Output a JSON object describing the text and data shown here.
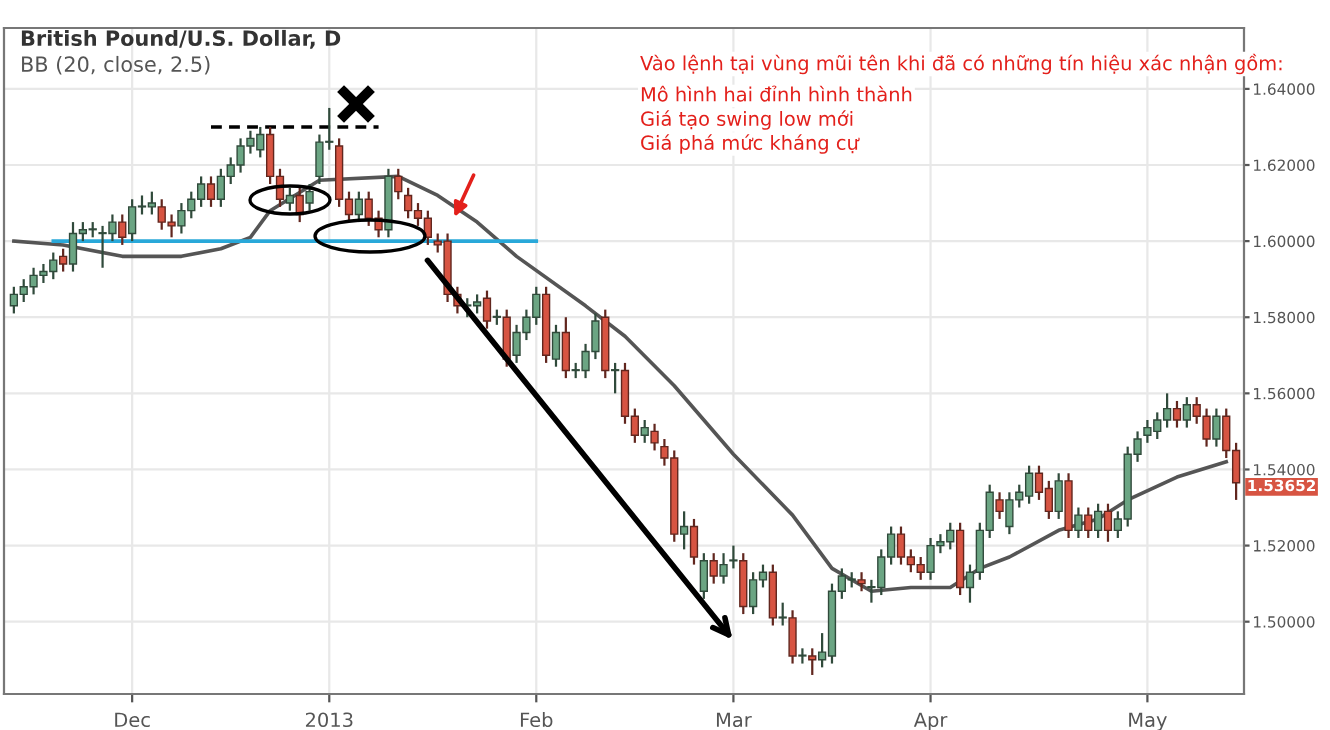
{
  "chart_data": {
    "type": "candlestick",
    "title": "British Pound/U.S. Dollar, D",
    "subtitle": "BB (20, close, 2.5)",
    "categories": [
      null,
      null,
      null,
      null,
      null,
      null,
      null,
      null,
      null,
      null,
      null,
      null,
      "Dec",
      null,
      null,
      null,
      null,
      null,
      null,
      null,
      null,
      null,
      null,
      null,
      null,
      null,
      null,
      null,
      null,
      null,
      null,
      null,
      "2013",
      null,
      null,
      null,
      null,
      null,
      null,
      null,
      null,
      null,
      null,
      null,
      null,
      null,
      null,
      null,
      null,
      null,
      null,
      null,
      null,
      "Feb",
      null,
      null,
      null,
      null,
      null,
      null,
      null,
      null,
      null,
      null,
      null,
      null,
      null,
      null,
      null,
      null,
      null,
      null,
      null,
      "Mar",
      null,
      null,
      null,
      null,
      null,
      null,
      null,
      null,
      null,
      null,
      null,
      null,
      null,
      null,
      null,
      null,
      null,
      null,
      null,
      "Apr",
      null,
      null,
      null,
      null,
      null,
      null,
      null,
      null,
      null,
      null,
      null,
      null,
      null,
      null,
      null,
      null,
      null,
      null,
      null,
      null,
      null,
      "May",
      null,
      null,
      null,
      null,
      null,
      null,
      null,
      null,
      null
    ],
    "ohlc": [
      [
        1.583,
        1.588,
        1.581,
        1.586
      ],
      [
        1.586,
        1.59,
        1.584,
        1.588
      ],
      [
        1.588,
        1.593,
        1.586,
        1.591
      ],
      [
        1.591,
        1.594,
        1.589,
        1.592
      ],
      [
        1.592,
        1.597,
        1.59,
        1.595
      ],
      [
        1.596,
        1.598,
        1.592,
        1.594
      ],
      [
        1.594,
        1.605,
        1.592,
        1.602
      ],
      [
        1.602,
        1.605,
        1.6,
        1.603
      ],
      [
        1.603,
        1.605,
        1.601,
        1.603
      ],
      [
        1.602,
        1.604,
        1.593,
        1.602
      ],
      [
        1.602,
        1.607,
        1.6,
        1.605
      ],
      [
        1.605,
        1.607,
        1.599,
        1.601
      ],
      [
        1.602,
        1.611,
        1.6,
        1.609
      ],
      [
        1.609,
        1.612,
        1.607,
        1.609
      ],
      [
        1.609,
        1.613,
        1.607,
        1.61
      ],
      [
        1.609,
        1.611,
        1.603,
        1.605
      ],
      [
        1.605,
        1.607,
        1.601,
        1.604
      ],
      [
        1.604,
        1.61,
        1.602,
        1.608
      ],
      [
        1.608,
        1.613,
        1.606,
        1.611
      ],
      [
        1.611,
        1.617,
        1.609,
        1.615
      ],
      [
        1.615,
        1.617,
        1.609,
        1.611
      ],
      [
        1.611,
        1.619,
        1.609,
        1.617
      ],
      [
        1.617,
        1.622,
        1.615,
        1.62
      ],
      [
        1.62,
        1.627,
        1.618,
        1.625
      ],
      [
        1.625,
        1.629,
        1.623,
        1.627
      ],
      [
        1.624,
        1.63,
        1.622,
        1.628
      ],
      [
        1.628,
        1.63,
        1.615,
        1.617
      ],
      [
        1.617,
        1.619,
        1.609,
        1.611
      ],
      [
        1.61,
        1.614,
        1.608,
        1.612
      ],
      [
        1.612,
        1.614,
        1.605,
        1.607
      ],
      [
        1.61,
        1.615,
        1.608,
        1.613
      ],
      [
        1.617,
        1.628,
        1.615,
        1.626
      ],
      [
        1.626,
        1.635,
        1.624,
        1.626
      ],
      [
        1.625,
        1.627,
        1.609,
        1.611
      ],
      [
        1.611,
        1.613,
        1.605,
        1.607
      ],
      [
        1.607,
        1.613,
        1.605,
        1.611
      ],
      [
        1.611,
        1.613,
        1.604,
        1.606
      ],
      [
        1.606,
        1.608,
        1.601,
        1.603
      ],
      [
        1.603,
        1.619,
        1.601,
        1.617
      ],
      [
        1.617,
        1.619,
        1.611,
        1.613
      ],
      [
        1.612,
        1.614,
        1.606,
        1.608
      ],
      [
        1.608,
        1.61,
        1.604,
        1.606
      ],
      [
        1.606,
        1.608,
        1.599,
        1.601
      ],
      [
        1.6,
        1.602,
        1.597,
        1.599
      ],
      [
        1.6,
        1.602,
        1.584,
        1.586
      ],
      [
        1.586,
        1.588,
        1.581,
        1.583
      ],
      [
        1.583,
        1.585,
        1.58,
        1.583
      ],
      [
        1.583,
        1.586,
        1.581,
        1.584
      ],
      [
        1.585,
        1.587,
        1.577,
        1.579
      ],
      [
        1.58,
        1.582,
        1.578,
        1.58
      ],
      [
        1.58,
        1.582,
        1.567,
        1.569
      ],
      [
        1.57,
        1.578,
        1.568,
        1.576
      ],
      [
        1.576,
        1.582,
        1.574,
        1.58
      ],
      [
        1.58,
        1.588,
        1.578,
        1.586
      ],
      [
        1.586,
        1.588,
        1.568,
        1.57
      ],
      [
        1.569,
        1.578,
        1.567,
        1.576
      ],
      [
        1.576,
        1.58,
        1.564,
        1.566
      ],
      [
        1.566,
        1.568,
        1.564,
        1.566
      ],
      [
        1.566,
        1.573,
        1.564,
        1.571
      ],
      [
        1.571,
        1.581,
        1.569,
        1.579
      ],
      [
        1.58,
        1.582,
        1.564,
        1.566
      ],
      [
        1.566,
        1.568,
        1.56,
        1.566
      ],
      [
        1.566,
        1.568,
        1.552,
        1.554
      ],
      [
        1.554,
        1.556,
        1.547,
        1.549
      ],
      [
        1.549,
        1.553,
        1.547,
        1.551
      ],
      [
        1.55,
        1.552,
        1.545,
        1.547
      ],
      [
        1.546,
        1.548,
        1.541,
        1.543
      ],
      [
        1.543,
        1.545,
        1.521,
        1.523
      ],
      [
        1.523,
        1.529,
        1.519,
        1.525
      ],
      [
        1.525,
        1.527,
        1.515,
        1.517
      ],
      [
        1.508,
        1.518,
        1.506,
        1.516
      ],
      [
        1.516,
        1.518,
        1.51,
        1.512
      ],
      [
        1.512,
        1.518,
        1.51,
        1.515
      ],
      [
        1.516,
        1.52,
        1.514,
        1.516
      ],
      [
        1.516,
        1.518,
        1.502,
        1.504
      ],
      [
        1.504,
        1.513,
        1.502,
        1.511
      ],
      [
        1.511,
        1.515,
        1.509,
        1.513
      ],
      [
        1.513,
        1.515,
        1.499,
        1.501
      ],
      [
        1.501,
        1.505,
        1.499,
        1.501
      ],
      [
        1.501,
        1.503,
        1.489,
        1.491
      ],
      [
        1.491,
        1.493,
        1.489,
        1.491
      ],
      [
        1.491,
        1.493,
        1.486,
        1.49
      ],
      [
        1.49,
        1.497,
        1.488,
        1.492
      ],
      [
        1.491,
        1.51,
        1.489,
        1.508
      ],
      [
        1.508,
        1.514,
        1.506,
        1.512
      ],
      [
        1.511,
        1.513,
        1.509,
        1.511
      ],
      [
        1.511,
        1.513,
        1.508,
        1.51
      ],
      [
        1.509,
        1.511,
        1.505,
        1.509
      ],
      [
        1.509,
        1.519,
        1.507,
        1.517
      ],
      [
        1.517,
        1.525,
        1.515,
        1.523
      ],
      [
        1.523,
        1.525,
        1.515,
        1.517
      ],
      [
        1.517,
        1.519,
        1.513,
        1.515
      ],
      [
        1.515,
        1.517,
        1.511,
        1.513
      ],
      [
        1.513,
        1.522,
        1.511,
        1.52
      ],
      [
        1.52,
        1.523,
        1.518,
        1.521
      ],
      [
        1.521,
        1.526,
        1.519,
        1.524
      ],
      [
        1.524,
        1.526,
        1.507,
        1.509
      ],
      [
        1.509,
        1.515,
        1.505,
        1.513
      ],
      [
        1.513,
        1.526,
        1.511,
        1.524
      ],
      [
        1.524,
        1.536,
        1.522,
        1.534
      ],
      [
        1.532,
        1.534,
        1.527,
        1.529
      ],
      [
        1.525,
        1.534,
        1.523,
        1.532
      ],
      [
        1.532,
        1.536,
        1.53,
        1.534
      ],
      [
        1.533,
        1.541,
        1.531,
        1.539
      ],
      [
        1.539,
        1.541,
        1.532,
        1.534
      ],
      [
        1.535,
        1.537,
        1.527,
        1.529
      ],
      [
        1.529,
        1.539,
        1.527,
        1.537
      ],
      [
        1.537,
        1.539,
        1.522,
        1.524
      ],
      [
        1.524,
        1.53,
        1.522,
        1.528
      ],
      [
        1.528,
        1.53,
        1.522,
        1.524
      ],
      [
        1.524,
        1.531,
        1.522,
        1.529
      ],
      [
        1.529,
        1.531,
        1.521,
        1.524
      ],
      [
        1.524,
        1.529,
        1.522,
        1.527
      ],
      [
        1.527,
        1.546,
        1.525,
        1.544
      ],
      [
        1.544,
        1.55,
        1.542,
        1.548
      ],
      [
        1.549,
        1.553,
        1.547,
        1.551
      ],
      [
        1.55,
        1.555,
        1.548,
        1.553
      ],
      [
        1.553,
        1.56,
        1.551,
        1.556
      ],
      [
        1.556,
        1.558,
        1.551,
        1.553
      ],
      [
        1.553,
        1.559,
        1.551,
        1.557
      ],
      [
        1.557,
        1.559,
        1.552,
        1.554
      ],
      [
        1.554,
        1.556,
        1.546,
        1.548
      ],
      [
        1.548,
        1.556,
        1.546,
        1.554
      ],
      [
        1.554,
        1.556,
        1.543,
        1.545
      ],
      [
        1.545,
        1.547,
        1.532,
        1.53652
      ]
    ],
    "colors": [
      "#6ba583",
      "#6ba583",
      "#6ba583",
      "#6ba583",
      "#6ba583",
      "#d75442",
      "#6ba583",
      "#6ba583",
      "#6ba583",
      "#6ba583",
      "#6ba583",
      "#d75442",
      "#6ba583",
      "#6ba583",
      "#6ba583",
      "#d75442",
      "#d75442",
      "#6ba583",
      "#6ba583",
      "#6ba583",
      "#d75442",
      "#6ba583",
      "#6ba583",
      "#6ba583",
      "#6ba583",
      "#6ba583",
      "#d75442",
      "#d75442",
      "#6ba583",
      "#d75442",
      "#6ba583",
      "#6ba583",
      "#6ba583",
      "#d75442",
      "#d75442",
      "#6ba583",
      "#d75442",
      "#d75442",
      "#6ba583",
      "#d75442",
      "#d75442",
      "#d75442",
      "#d75442",
      "#d75442",
      "#d75442",
      "#d75442",
      "#6ba583",
      "#6ba583",
      "#d75442",
      "#6ba583",
      "#d75442",
      "#6ba583",
      "#6ba583",
      "#6ba583",
      "#d75442",
      "#6ba583",
      "#d75442",
      "#6ba583",
      "#6ba583",
      "#6ba583",
      "#d75442",
      "#6ba583",
      "#d75442",
      "#d75442",
      "#6ba583",
      "#d75442",
      "#d75442",
      "#d75442",
      "#6ba583",
      "#d75442",
      "#6ba583",
      "#d75442",
      "#6ba583",
      "#6ba583",
      "#d75442",
      "#6ba583",
      "#6ba583",
      "#d75442",
      "#6ba583",
      "#d75442",
      "#6ba583",
      "#d75442",
      "#6ba583",
      "#6ba583",
      "#6ba583",
      "#6ba583",
      "#d75442",
      "#6ba583",
      "#6ba583",
      "#6ba583",
      "#d75442",
      "#d75442",
      "#d75442",
      "#6ba583",
      "#6ba583",
      "#6ba583",
      "#d75442",
      "#6ba583",
      "#6ba583",
      "#6ba583",
      "#d75442",
      "#6ba583",
      "#6ba583",
      "#6ba583",
      "#d75442",
      "#d75442",
      "#6ba583",
      "#d75442",
      "#6ba583",
      "#d75442",
      "#6ba583",
      "#d75442",
      "#6ba583",
      "#6ba583",
      "#6ba583",
      "#6ba583",
      "#6ba583",
      "#6ba583",
      "#d75442",
      "#6ba583",
      "#d75442",
      "#d75442",
      "#6ba583",
      "#d75442",
      "#d75442"
    ],
    "series": [
      {
        "type": "line",
        "color": "#555555",
        "line_style": "solid",
        "values": [
          1.6,
          null,
          null,
          null,
          null,
          1.599,
          null,
          null,
          null,
          null,
          null,
          1.596,
          null,
          null,
          null,
          null,
          null,
          1.596,
          null,
          null,
          null,
          1.598,
          null,
          null,
          1.601,
          null,
          1.608,
          null,
          null,
          null,
          null,
          1.616,
          null,
          null,
          null,
          null,
          null,
          null,
          null,
          1.617,
          null,
          null,
          null,
          1.612,
          null,
          null,
          null,
          1.605,
          null,
          null,
          null,
          1.596,
          null,
          null,
          null,
          null,
          null,
          null,
          1.583,
          null,
          null,
          null,
          1.575,
          null,
          null,
          null,
          null,
          1.562,
          null,
          null,
          null,
          null,
          null,
          1.544,
          null,
          null,
          null,
          null,
          null,
          1.528,
          null,
          null,
          null,
          1.514,
          null,
          null,
          null,
          1.508,
          null,
          null,
          null,
          1.509,
          null,
          null,
          null,
          1.509,
          null,
          null,
          1.514,
          null,
          null,
          1.517,
          null,
          null,
          null,
          null,
          1.524,
          null,
          null,
          null,
          1.527,
          null,
          null,
          1.532,
          null,
          null,
          null,
          null,
          1.538,
          null,
          null,
          null,
          null,
          1.542,
          null
        ]
      },
      {
        "type": "line",
        "color": "#29a8d9",
        "line_style": "solid",
        "values": [
          null,
          null,
          null,
          null,
          1.6,
          null,
          null,
          null,
          null,
          null,
          null,
          null,
          null,
          null,
          null,
          null,
          null,
          null,
          null,
          null,
          null,
          null,
          null,
          null,
          null,
          null,
          null,
          null,
          null,
          null,
          null,
          null,
          null,
          null,
          null,
          null,
          null,
          null,
          null,
          null,
          null,
          null,
          null,
          null,
          null,
          null,
          null,
          null,
          null,
          null,
          null,
          null,
          null,
          1.6,
          null,
          null,
          null,
          null,
          null,
          null,
          null,
          null,
          null,
          null,
          null,
          null,
          null,
          null,
          null,
          null,
          null,
          null,
          null,
          null,
          null,
          null,
          null,
          null,
          null,
          null,
          null,
          null,
          null,
          null,
          null,
          null,
          null,
          null,
          null,
          null,
          null,
          null,
          null,
          null,
          null,
          null,
          null,
          null,
          null,
          null,
          null,
          null,
          null,
          null,
          null,
          null,
          null,
          null,
          null,
          null,
          null,
          null,
          null,
          null,
          null,
          null,
          null,
          null,
          null,
          null,
          null,
          null,
          null,
          null,
          null
        ]
      },
      {
        "type": "line",
        "color": "#000000",
        "line_style": "dashed",
        "values": [
          null,
          null,
          null,
          null,
          null,
          null,
          null,
          null,
          null,
          null,
          null,
          null,
          null,
          null,
          null,
          null,
          null,
          null,
          null,
          null,
          1.63,
          null,
          null,
          null,
          null,
          null,
          null,
          null,
          null,
          null,
          null,
          null,
          null,
          null,
          null,
          null,
          null,
          1.63,
          null,
          null,
          null,
          null,
          null,
          null,
          null,
          null,
          null,
          null,
          null,
          null,
          null,
          null,
          null,
          null,
          null,
          null,
          null,
          null,
          null,
          null,
          null,
          null,
          null,
          null,
          null,
          null,
          null,
          null,
          null,
          null,
          null,
          null,
          null,
          null,
          null,
          null,
          null,
          null,
          null,
          null,
          null,
          null,
          null,
          null,
          null,
          null,
          null,
          null,
          null,
          null,
          null,
          null,
          null,
          null,
          null,
          null,
          null,
          null,
          null,
          null,
          null,
          null,
          null,
          null,
          null,
          null,
          null,
          null,
          null,
          null,
          null,
          null,
          null,
          null,
          null,
          null,
          null,
          null,
          null,
          null,
          null,
          null,
          null,
          null,
          null
        ]
      }
    ],
    "ylim": [
      1.481,
      1.656
    ],
    "yticks": [
      {
        "value": 1.5,
        "label": "1.50000"
      },
      {
        "value": 1.52,
        "label": "1.52000"
      },
      {
        "value": 1.54,
        "label": "1.54000"
      },
      {
        "value": 1.56,
        "label": "1.56000"
      },
      {
        "value": 1.58,
        "label": "1.58000"
      },
      {
        "value": 1.6,
        "label": "1.60000"
      },
      {
        "value": 1.62,
        "label": "1.62000"
      },
      {
        "value": 1.64,
        "label": "1.64000"
      }
    ],
    "grid": true,
    "annotations": [
      "Vào lệnh tại vùng mũi tên khi đã có những tín hiệu xác nhận gồm:",
      "Mô hình hai đỉnh hình thành",
      "Giá tạo swing low mới",
      "Giá phá mức kháng cự",
      "1.53652"
    ]
  }
}
